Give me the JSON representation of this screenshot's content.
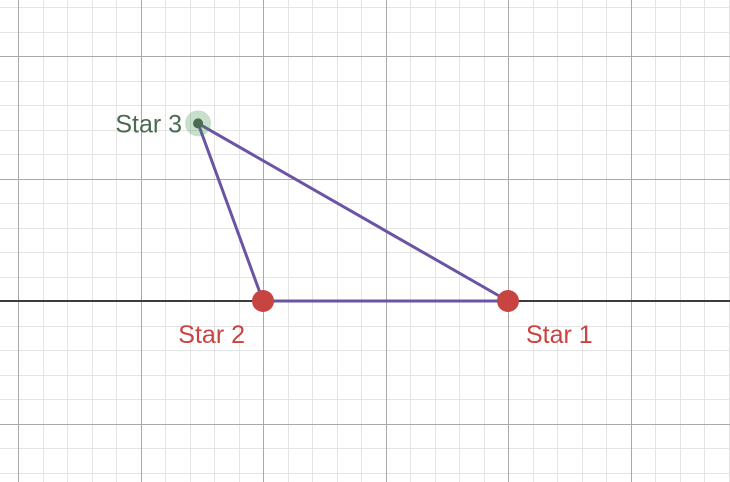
{
  "graph": {
    "colors": {
      "minor_grid": "#e4e4e4",
      "major_grid": "#a9a9a9",
      "axis": "#3c3c3c",
      "triangle": "#6b54a3",
      "red_point": "#c74440",
      "green_point": "#388c46",
      "green_label": "#4a6b50"
    },
    "grid": true,
    "triangle": {
      "vertices": [
        "star1",
        "star2",
        "star3"
      ]
    },
    "points": {
      "star1": {
        "label": "Star 1",
        "color": "#c74440",
        "x": 2,
        "y": 0,
        "label_position": "below-right"
      },
      "star2": {
        "label": "Star 2",
        "color": "#c74440",
        "x": 0,
        "y": 0,
        "label_position": "below-left"
      },
      "star3": {
        "label": "Star 3",
        "color": "#388c46",
        "x": -0.53,
        "y": 1.45,
        "label_position": "left",
        "highlighted": true
      }
    }
  }
}
